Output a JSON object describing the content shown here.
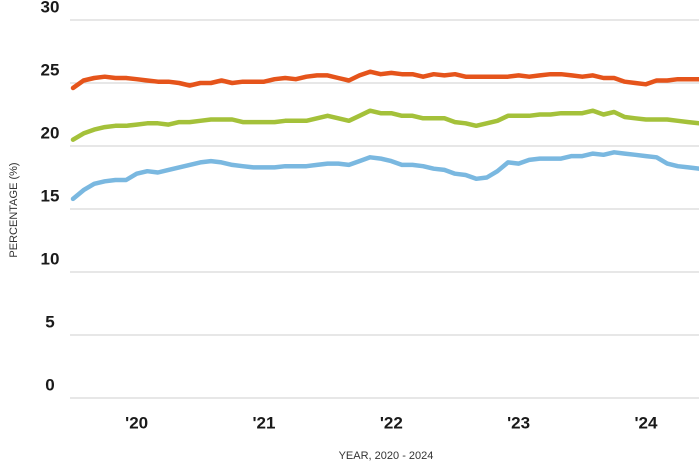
{
  "chart_data": {
    "type": "line",
    "ylabel": "PERCENTAGE (%)",
    "xlabel": "YEAR, 2020 - 2024",
    "categories": [
      null,
      null,
      null,
      null,
      null,
      null,
      "'20",
      null,
      null,
      null,
      null,
      null,
      null,
      null,
      null,
      null,
      null,
      null,
      "'21",
      null,
      null,
      null,
      null,
      null,
      null,
      null,
      null,
      null,
      null,
      null,
      "'22",
      null,
      null,
      null,
      null,
      null,
      null,
      null,
      null,
      null,
      null,
      null,
      "'23",
      null,
      null,
      null,
      null,
      null,
      null,
      null,
      null,
      null,
      null,
      null,
      "'24",
      null,
      null,
      null,
      null,
      null
    ],
    "series": [
      {
        "color": "#e5541b",
        "values": [
          24.6,
          25.2,
          25.4,
          25.5,
          25.4,
          25.4,
          25.3,
          25.2,
          25.1,
          25.1,
          25.0,
          24.8,
          25.0,
          25.0,
          25.2,
          25.0,
          25.1,
          25.1,
          25.1,
          25.3,
          25.4,
          25.3,
          25.5,
          25.6,
          25.6,
          25.4,
          25.2,
          25.6,
          25.9,
          25.7,
          25.8,
          25.7,
          25.7,
          25.5,
          25.7,
          25.6,
          25.7,
          25.5,
          25.5,
          25.5,
          25.5,
          25.5,
          25.6,
          25.5,
          25.6,
          25.7,
          25.7,
          25.6,
          25.5,
          25.6,
          25.4,
          25.4,
          25.1,
          25.0,
          24.9,
          25.2,
          25.2,
          25.3,
          25.3,
          25.3
        ]
      },
      {
        "color": "#a4c13a",
        "values": [
          20.5,
          21.0,
          21.3,
          21.5,
          21.6,
          21.6,
          21.7,
          21.8,
          21.8,
          21.7,
          21.9,
          21.9,
          22.0,
          22.1,
          22.1,
          22.1,
          21.9,
          21.9,
          21.9,
          21.9,
          22.0,
          22.0,
          22.0,
          22.2,
          22.4,
          22.2,
          22.0,
          22.4,
          22.8,
          22.6,
          22.6,
          22.4,
          22.4,
          22.2,
          22.2,
          22.2,
          21.9,
          21.8,
          21.6,
          21.8,
          22.0,
          22.4,
          22.4,
          22.4,
          22.5,
          22.5,
          22.6,
          22.6,
          22.6,
          22.8,
          22.5,
          22.7,
          22.3,
          22.2,
          22.1,
          22.1,
          22.1,
          22.0,
          21.9,
          21.8
        ]
      },
      {
        "color": "#7ab8e0",
        "values": [
          15.8,
          16.5,
          17.0,
          17.2,
          17.3,
          17.3,
          17.8,
          18.0,
          17.9,
          18.1,
          18.3,
          18.5,
          18.7,
          18.8,
          18.7,
          18.5,
          18.4,
          18.3,
          18.3,
          18.3,
          18.4,
          18.4,
          18.4,
          18.5,
          18.6,
          18.6,
          18.5,
          18.8,
          19.1,
          19.0,
          18.8,
          18.5,
          18.5,
          18.4,
          18.2,
          18.1,
          17.8,
          17.7,
          17.4,
          17.5,
          18.0,
          18.7,
          18.6,
          18.9,
          19.0,
          19.0,
          19.0,
          19.2,
          19.2,
          19.4,
          19.3,
          19.5,
          19.4,
          19.3,
          19.2,
          19.1,
          18.6,
          18.4,
          18.3,
          18.2
        ]
      }
    ],
    "ylim": [
      0,
      30
    ],
    "yticks": [
      0,
      5,
      10,
      15,
      20,
      25,
      30
    ],
    "grid": true
  }
}
